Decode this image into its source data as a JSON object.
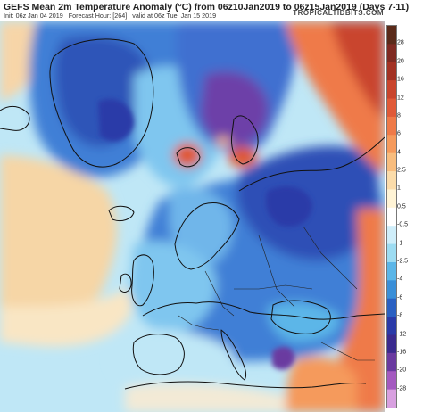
{
  "header": {
    "title": "GEFS Mean 2m Temperature Anomaly (°C) from 06z10Jan2019 to 06z15Jan2019 (Days 7-11)",
    "init": "Init: 06z Jan 04 2019",
    "forecast_hour": "Forecast Hour: [264]",
    "valid": "valid at 06z Tue, Jan 15 2019",
    "brand": "TROPICALTIDBITS.COM"
  },
  "colorbar": {
    "labels": [
      "28",
      "20",
      "16",
      "12",
      "8",
      "6",
      "4",
      "2.5",
      "1",
      "0.5",
      "-0.5",
      "-1",
      "-2.5",
      "-4",
      "-6",
      "-8",
      "-12",
      "-16",
      "-20",
      "-28"
    ],
    "colors": [
      "#5a2a1a",
      "#7f2a22",
      "#a33224",
      "#c9452d",
      "#e05a38",
      "#ef7a48",
      "#f59a5c",
      "#f8bd7e",
      "#fbdcaa",
      "#fff4d6",
      "#ffffff",
      "#cfeefa",
      "#9ddcf2",
      "#5bb6e8",
      "#3a8fd8",
      "#2a60c2",
      "#2a3aa8",
      "#3a2a8e",
      "#6a3aa0",
      "#a45ac0",
      "#d8a0e0"
    ]
  },
  "map_colors": {
    "ocean_cold": "#bfe7f6",
    "warm_atlantic": "#f6d6a6",
    "very_warm": "#e9683a",
    "cold": "#3f7fd6",
    "very_cold": "#2d4fb6",
    "purple": "#6d3fa8"
  }
}
